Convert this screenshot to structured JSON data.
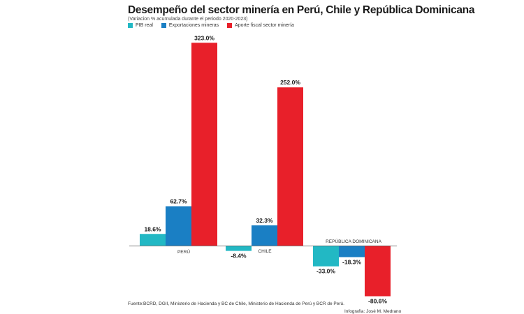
{
  "header": {
    "title": "Desempeño del sector minería en Perú, Chile y República Dominicana",
    "subtitle": "(Variacion % acumulada durante el periodo 2020-2023)"
  },
  "footer": {
    "source": "Fuente:BCRD, DGII, Ministerio de Hacienda y BC de Chile, Ministerio de Hacienda de Perú y BCR de Perú.",
    "credit": "Infografía: José M. Medrano"
  },
  "chart_data": {
    "type": "bar",
    "title": "Desempeño del sector minería en Perú, Chile y República Dominicana",
    "subtitle": "(Variacion % acumulada durante el periodo 2020-2023)",
    "categories": [
      "PERÚ",
      "CHILE",
      "REPÚBLICA DOMINICANA"
    ],
    "series": [
      {
        "name": "PIB real",
        "values": [
          18.6,
          -8.4,
          -33.0
        ],
        "labels": [
          "18.6%",
          "-8.4%",
          "-33.0%"
        ],
        "color": "#22b8c4"
      },
      {
        "name": "Exportaciones mineras",
        "values": [
          62.7,
          32.3,
          -18.3
        ],
        "labels": [
          "62.7%",
          "32.3%",
          "-18.3%"
        ],
        "color": "#1a7fc4"
      },
      {
        "name": "Aporte fiscal sector minería",
        "values": [
          323.0,
          252.0,
          -80.6
        ],
        "labels": [
          "323.0%",
          "252.0%",
          "-80.6%"
        ],
        "color": "#e8202a"
      }
    ],
    "xlabel": "",
    "ylabel": "",
    "legend_position": "top-left",
    "grid": false
  }
}
